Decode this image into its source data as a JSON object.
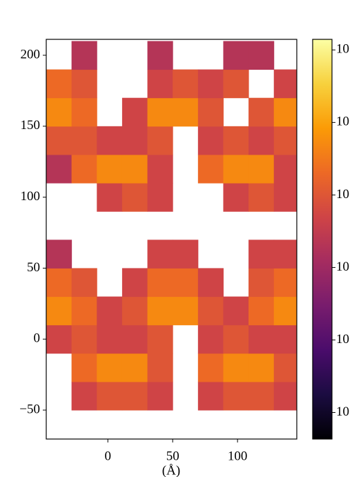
{
  "chart_data": {
    "type": "heatmap",
    "xlabel": "(Å)",
    "xbins": [
      -47.5,
      -28,
      -8.5,
      11,
      30.5,
      50,
      69.5,
      89,
      108.5,
      128,
      147.5
    ],
    "ybins": [
      -70,
      -50,
      -30,
      -10,
      10,
      30,
      50,
      70,
      90,
      110,
      130,
      150,
      170,
      190,
      210
    ],
    "values": [
      [
        null,
        null,
        null,
        null,
        null,
        null,
        null,
        null,
        null,
        null
      ],
      [
        null,
        0.005,
        0.01,
        0.01,
        0.005,
        null,
        0.005,
        0.01,
        0.01,
        0.005
      ],
      [
        null,
        0.02,
        0.05,
        0.05,
        0.01,
        null,
        0.02,
        0.05,
        0.05,
        0.01
      ],
      [
        0.005,
        0.01,
        0.005,
        0.005,
        0.01,
        null,
        0.005,
        0.01,
        0.005,
        0.005
      ],
      [
        0.05,
        0.02,
        0.005,
        0.01,
        0.05,
        0.05,
        0.01,
        0.005,
        0.02,
        0.05
      ],
      [
        0.02,
        0.01,
        null,
        0.005,
        0.02,
        0.02,
        0.005,
        null,
        0.01,
        0.02
      ],
      [
        0.002,
        null,
        null,
        null,
        0.005,
        0.005,
        null,
        null,
        0.005,
        0.005
      ],
      [
        null,
        null,
        null,
        null,
        null,
        null,
        null,
        null,
        null,
        null
      ],
      [
        null,
        null,
        0.005,
        0.01,
        0.005,
        null,
        null,
        0.005,
        0.01,
        0.005
      ],
      [
        0.002,
        0.02,
        0.05,
        0.05,
        0.005,
        null,
        0.02,
        0.05,
        0.05,
        0.005
      ],
      [
        0.01,
        0.01,
        0.005,
        0.005,
        0.01,
        null,
        0.005,
        0.01,
        0.005,
        0.01
      ],
      [
        0.05,
        0.02,
        null,
        0.005,
        0.05,
        0.05,
        0.01,
        null,
        0.01,
        0.05
      ],
      [
        0.02,
        0.01,
        null,
        null,
        0.005,
        0.01,
        0.005,
        0.01,
        null,
        0.005
      ],
      [
        null,
        0.002,
        null,
        null,
        0.002,
        null,
        null,
        0.002,
        0.002,
        null
      ]
    ],
    "xlim": [
      -47.5,
      145.7
    ],
    "ylim": [
      -70.4,
      211.2
    ],
    "xticks": [
      0,
      50,
      100
    ],
    "yticks": [
      {
        "value": -50,
        "label": "−50"
      },
      0,
      50,
      100,
      150,
      200
    ],
    "colormap": "inferno",
    "color_scale": "log",
    "clim": [
      4.3e-06,
      1.4
    ],
    "cticks": [
      {
        "value": 1e-05,
        "label": "10"
      },
      {
        "value": 0.0001,
        "label": "10"
      },
      {
        "value": 0.001,
        "label": "10"
      },
      {
        "value": 0.01,
        "label": "10"
      },
      {
        "value": 0.1,
        "label": "10"
      },
      {
        "value": 1,
        "label": "10"
      }
    ]
  }
}
